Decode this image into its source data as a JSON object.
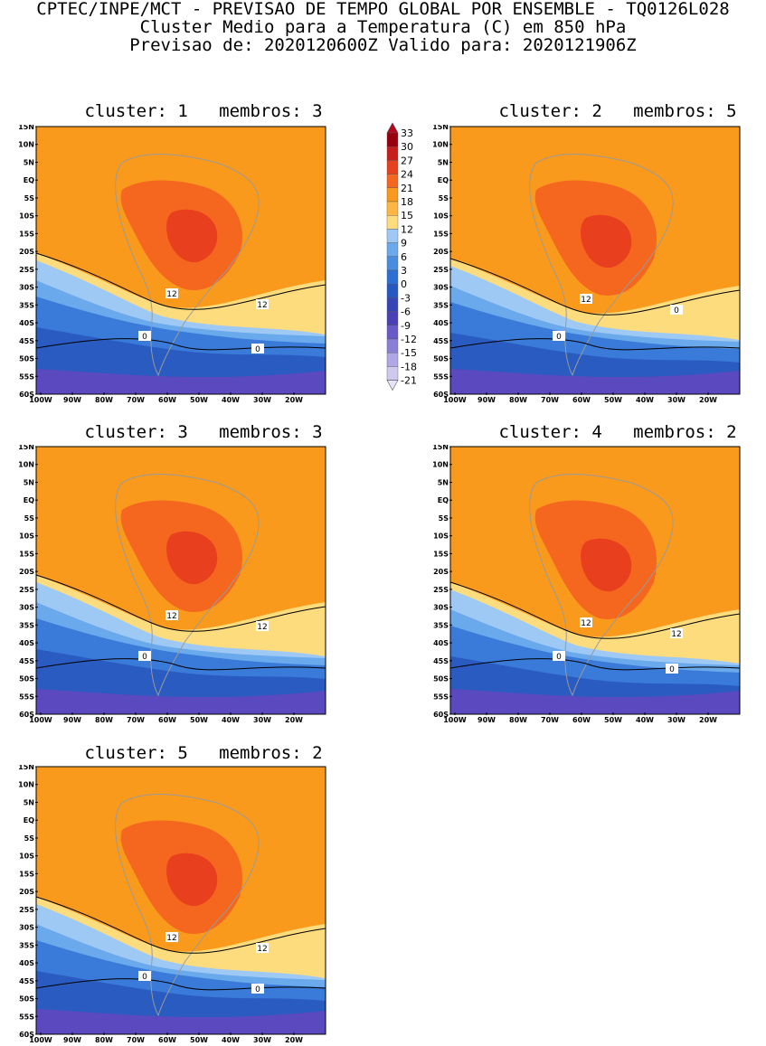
{
  "header": {
    "line1": "CPTEC/INPE/MCT - PREVISAO DE TEMPO GLOBAL POR ENSEMBLE - TQ0126L028",
    "line2": "Cluster Medio para a Temperatura (C) em 850 hPa",
    "line3": "Previsao de: 2020120600Z   Valido para: 2020121906Z"
  },
  "lat_labels": [
    "15N",
    "10N",
    "5N",
    "EQ",
    "5S",
    "10S",
    "15S",
    "20S",
    "25S",
    "30S",
    "35S",
    "40S",
    "45S",
    "50S",
    "55S",
    "60S"
  ],
  "lon_labels": [
    "100W",
    "90W",
    "80W",
    "70W",
    "60W",
    "50W",
    "40W",
    "30W",
    "20W"
  ],
  "colorbar": {
    "labels": [
      "33",
      "30",
      "27",
      "24",
      "21",
      "18",
      "15",
      "12",
      "9",
      "6",
      "3",
      "0",
      "-3",
      "-6",
      "-9",
      "-12",
      "-15",
      "-18",
      "-21"
    ],
    "colors": [
      "#99000d",
      "#c81d1d",
      "#e8401f",
      "#f5661f",
      "#f99a1c",
      "#fdb543",
      "#fddc7e",
      "#9fc9f5",
      "#6aa9ec",
      "#4a8de0",
      "#2c6fd4",
      "#2658c2",
      "#3545b8",
      "#4a3fb5",
      "#6a5ac9",
      "#8a7fd6",
      "#b0a8e6",
      "#cfc9f0"
    ],
    "top_color": "#b3051d",
    "bottom_color": "#e6e2f7"
  },
  "panels": [
    {
      "title": "cluster: 1   membros: 3",
      "contour_labels": [
        "12",
        "12",
        "0",
        "0"
      ]
    },
    {
      "title": "cluster: 2   membros: 5",
      "contour_labels": [
        "12",
        "0",
        "0"
      ]
    },
    {
      "title": "cluster: 3   membros: 3",
      "contour_labels": [
        "12",
        "12",
        "0"
      ]
    },
    {
      "title": "cluster: 4   membros: 2",
      "contour_labels": [
        "12",
        "12",
        "0",
        "0"
      ]
    },
    {
      "title": "cluster: 5   membros: 2",
      "contour_labels": [
        "12",
        "12",
        "0",
        "0"
      ]
    }
  ]
}
